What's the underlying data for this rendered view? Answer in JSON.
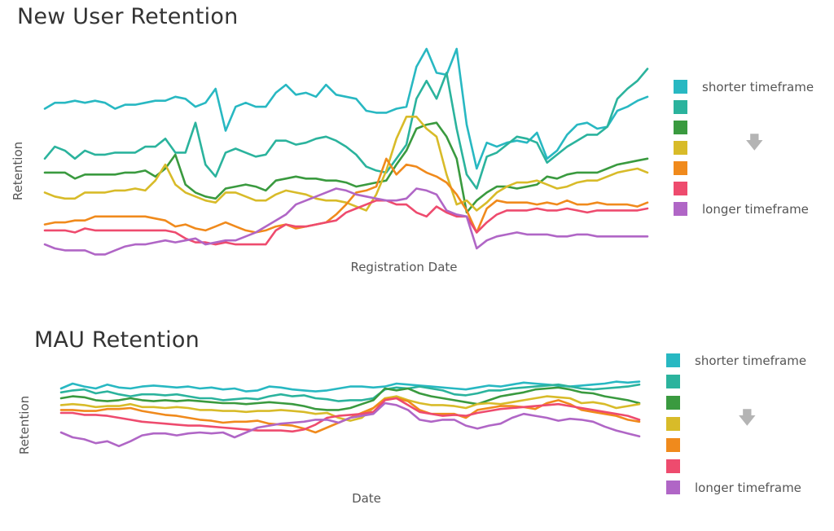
{
  "colors": [
    "#28b8c2",
    "#2bb39d",
    "#3a9a3f",
    "#d8bb29",
    "#f08a1c",
    "#ee4b6e",
    "#b066c6"
  ],
  "legend": {
    "top_label": "shorter timeframe",
    "bottom_label": "longer timeframe",
    "arrow_icon": "down-arrow-icon"
  },
  "chart_data": [
    {
      "type": "line",
      "title": "New User Retention",
      "xlabel": "Registration Date",
      "ylabel": "Retention",
      "x_ticks_shown": false,
      "y_ticks_shown": false,
      "grid": false,
      "legend_position": "right",
      "ylim": [
        0,
        100
      ],
      "series": [
        {
          "values": [
            70,
            73,
            73,
            74,
            73,
            74,
            73,
            70,
            72,
            72,
            73,
            74,
            74,
            76,
            75,
            71,
            73,
            80,
            59,
            71,
            73,
            71,
            71,
            78,
            82,
            77,
            78,
            76,
            82,
            77,
            76,
            75,
            69,
            68,
            68,
            70,
            71,
            91,
            100,
            88,
            87,
            100,
            62,
            40,
            53,
            51,
            53,
            54,
            53,
            58,
            45,
            49,
            57,
            62,
            63,
            60,
            61,
            69,
            71,
            74,
            76
          ]
        },
        {
          "values": [
            45,
            51,
            49,
            45,
            49,
            47,
            47,
            48,
            48,
            48,
            51,
            51,
            55,
            48,
            48,
            63,
            42,
            36,
            48,
            50,
            48,
            46,
            47,
            54,
            54,
            52,
            53,
            55,
            56,
            54,
            51,
            47,
            41,
            39,
            38,
            45,
            52,
            75,
            84,
            75,
            88,
            60,
            37,
            30,
            46,
            48,
            52,
            56,
            55,
            53,
            43,
            47,
            51,
            54,
            57,
            57,
            61,
            75,
            80,
            84,
            90
          ]
        },
        {
          "values": [
            38,
            38,
            38,
            35,
            37,
            37,
            37,
            37,
            38,
            38,
            39,
            36,
            40,
            47,
            32,
            28,
            26,
            25,
            30,
            31,
            32,
            31,
            29,
            34,
            35,
            36,
            35,
            35,
            34,
            34,
            33,
            31,
            32,
            33,
            34,
            42,
            49,
            60,
            62,
            63,
            56,
            45,
            18,
            24,
            28,
            31,
            31,
            30,
            31,
            32,
            36,
            35,
            37,
            38,
            38,
            38,
            40,
            42,
            43,
            44,
            45
          ]
        },
        {
          "values": [
            28,
            26,
            25,
            25,
            28,
            28,
            28,
            29,
            29,
            30,
            29,
            34,
            42,
            32,
            28,
            26,
            24,
            23,
            28,
            28,
            26,
            24,
            24,
            27,
            29,
            28,
            27,
            25,
            24,
            24,
            23,
            21,
            19,
            27,
            39,
            55,
            66,
            66,
            60,
            56,
            37,
            22,
            24,
            19,
            23,
            28,
            31,
            33,
            33,
            34,
            32,
            30,
            31,
            33,
            34,
            34,
            36,
            38,
            39,
            40,
            38
          ]
        },
        {
          "values": [
            12,
            13,
            13,
            14,
            14,
            16,
            16,
            16,
            16,
            16,
            16,
            15,
            14,
            11,
            12,
            10,
            9,
            11,
            13,
            11,
            9,
            8,
            9,
            11,
            12,
            10,
            11,
            12,
            13,
            17,
            22,
            28,
            29,
            31,
            45,
            37,
            42,
            41,
            38,
            36,
            33,
            27,
            19,
            8,
            20,
            24,
            23,
            23,
            23,
            22,
            23,
            22,
            24,
            22,
            22,
            23,
            22,
            22,
            22,
            21,
            23
          ]
        },
        {
          "values": [
            9,
            9,
            9,
            8,
            10,
            9,
            9,
            9,
            9,
            9,
            9,
            9,
            9,
            8,
            5,
            3,
            3,
            2,
            3,
            2,
            2,
            2,
            2,
            9,
            12,
            11,
            11,
            12,
            13,
            14,
            18,
            20,
            22,
            24,
            24,
            22,
            22,
            18,
            16,
            21,
            18,
            16,
            16,
            8,
            13,
            17,
            19,
            19,
            19,
            20,
            19,
            19,
            20,
            19,
            18,
            19,
            19,
            19,
            19,
            19,
            20
          ]
        },
        {
          "values": [
            2,
            0,
            -1,
            -1,
            -1,
            -3,
            -3,
            -1,
            1,
            2,
            2,
            3,
            4,
            3,
            4,
            5,
            2,
            3,
            4,
            4,
            6,
            8,
            11,
            14,
            17,
            22,
            24,
            26,
            28,
            30,
            29,
            27,
            26,
            25,
            24,
            24,
            25,
            30,
            29,
            27,
            19,
            17,
            16,
            0,
            4,
            6,
            7,
            8,
            7,
            7,
            7,
            6,
            6,
            7,
            7,
            6,
            6,
            6,
            6,
            6,
            6
          ]
        }
      ]
    },
    {
      "type": "line",
      "title": "MAU Retention",
      "xlabel": "Date",
      "ylabel": "Retention",
      "x_ticks_shown": false,
      "y_ticks_shown": false,
      "grid": false,
      "legend_position": "right",
      "ylim": [
        0,
        100
      ],
      "series": [
        {
          "values": [
            90,
            95,
            92,
            90,
            94,
            91,
            90,
            92,
            93,
            92,
            91,
            92,
            90,
            91,
            89,
            90,
            87,
            88,
            92,
            91,
            89,
            88,
            87,
            88,
            90,
            92,
            92,
            91,
            92,
            95,
            94,
            93,
            92,
            91,
            90,
            89,
            91,
            93,
            92,
            94,
            96,
            95,
            94,
            93,
            92,
            93,
            94,
            95,
            97,
            96,
            97
          ]
        },
        {
          "values": [
            86,
            88,
            89,
            85,
            87,
            84,
            82,
            84,
            84,
            83,
            84,
            82,
            80,
            80,
            78,
            79,
            80,
            79,
            82,
            84,
            82,
            83,
            80,
            79,
            77,
            78,
            78,
            80,
            89,
            91,
            90,
            92,
            90,
            88,
            84,
            83,
            85,
            88,
            88,
            90,
            91,
            92,
            93,
            94,
            92,
            90,
            89,
            90,
            91,
            92,
            94
          ]
        },
        {
          "values": [
            80,
            82,
            81,
            78,
            77,
            78,
            80,
            78,
            77,
            78,
            77,
            78,
            77,
            76,
            75,
            75,
            74,
            75,
            76,
            75,
            74,
            72,
            69,
            68,
            68,
            70,
            74,
            78,
            90,
            88,
            90,
            85,
            82,
            80,
            78,
            76,
            74,
            78,
            82,
            84,
            86,
            89,
            90,
            91,
            89,
            86,
            85,
            82,
            80,
            78,
            75
          ]
        },
        {
          "values": [
            73,
            74,
            73,
            71,
            72,
            72,
            74,
            71,
            71,
            70,
            71,
            70,
            68,
            68,
            67,
            67,
            66,
            67,
            67,
            68,
            67,
            66,
            64,
            65,
            60,
            57,
            60,
            70,
            80,
            82,
            78,
            75,
            73,
            73,
            72,
            70,
            74,
            75,
            74,
            76,
            78,
            80,
            82,
            81,
            80,
            75,
            76,
            74,
            70,
            72,
            74
          ]
        },
        {
          "values": [
            68,
            68,
            67,
            67,
            69,
            69,
            70,
            67,
            65,
            63,
            62,
            60,
            58,
            57,
            55,
            56,
            56,
            57,
            54,
            53,
            52,
            49,
            45,
            50,
            55,
            60,
            65,
            70,
            79,
            80,
            77,
            68,
            64,
            64,
            64,
            60,
            68,
            70,
            72,
            72,
            71,
            69,
            75,
            78,
            74,
            68,
            66,
            64,
            62,
            58,
            56
          ]
        },
        {
          "values": [
            65,
            65,
            63,
            63,
            62,
            60,
            58,
            56,
            55,
            54,
            53,
            52,
            52,
            51,
            50,
            49,
            48,
            47,
            47,
            47,
            46,
            48,
            53,
            60,
            62,
            63,
            64,
            66,
            78,
            80,
            73,
            66,
            64,
            62,
            63,
            62,
            65,
            67,
            69,
            70,
            71,
            72,
            73,
            74,
            72,
            70,
            68,
            66,
            64,
            62,
            58
          ]
        },
        {
          "values": [
            45,
            40,
            38,
            34,
            36,
            31,
            36,
            42,
            44,
            44,
            42,
            44,
            45,
            44,
            45,
            40,
            45,
            50,
            52,
            54,
            55,
            56,
            58,
            58,
            55,
            60,
            62,
            64,
            75,
            73,
            68,
            58,
            56,
            58,
            58,
            52,
            49,
            52,
            54,
            60,
            64,
            62,
            60,
            57,
            59,
            58,
            56,
            51,
            47,
            44,
            41
          ]
        }
      ]
    }
  ]
}
